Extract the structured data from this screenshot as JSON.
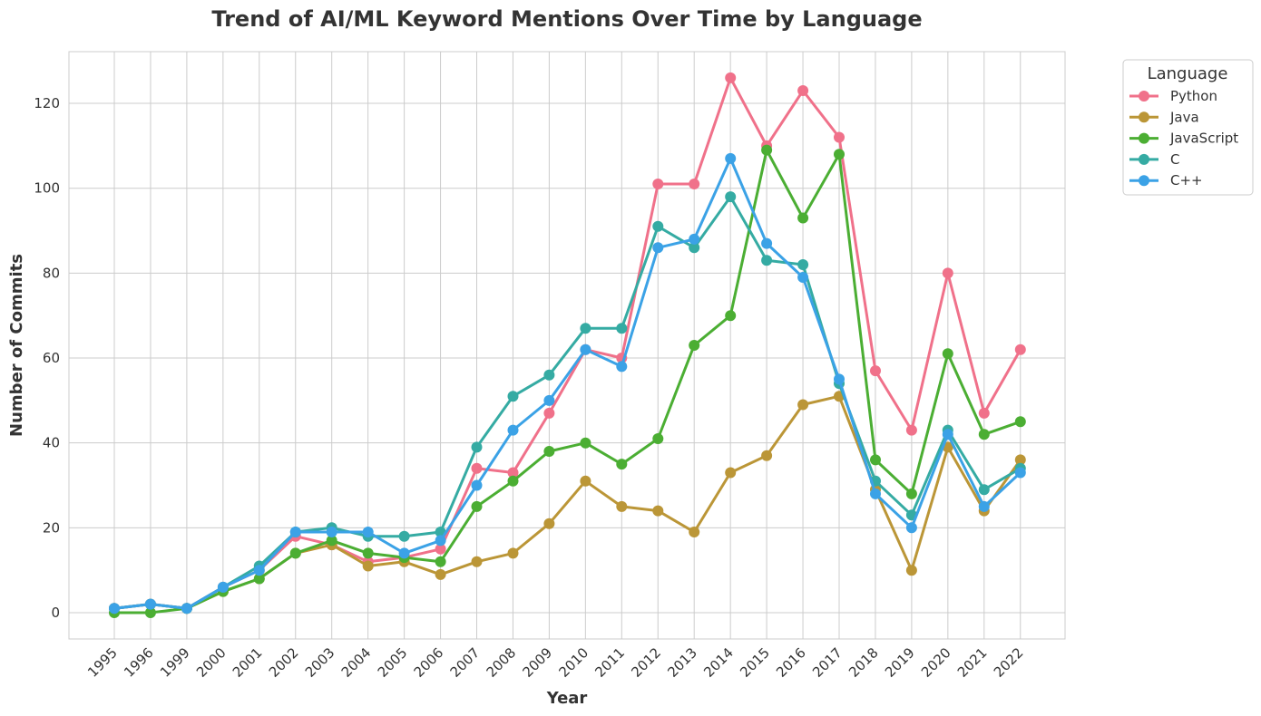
{
  "chart_data": {
    "type": "line",
    "title": "Trend of AI/ML Keyword Mentions Over Time by Language",
    "xlabel": "Year",
    "ylabel": "Number of Commits",
    "categories": [
      "1995",
      "1996",
      "1999",
      "2000",
      "2001",
      "2002",
      "2003",
      "2004",
      "2005",
      "2006",
      "2007",
      "2008",
      "2009",
      "2010",
      "2011",
      "2012",
      "2013",
      "2014",
      "2015",
      "2016",
      "2017",
      "2018",
      "2019",
      "2020",
      "2021",
      "2022"
    ],
    "ylim": [
      -6,
      132
    ],
    "yticks": [
      0,
      20,
      40,
      60,
      80,
      100,
      120
    ],
    "grid": true,
    "legend": {
      "title": "Language",
      "placement": "outside-top-right"
    },
    "series": [
      {
        "name": "Python",
        "color": "#f0718a",
        "values": [
          1,
          2,
          1,
          6,
          10,
          18,
          16,
          12,
          13,
          15,
          34,
          33,
          47,
          62,
          60,
          101,
          101,
          126,
          110,
          123,
          112,
          57,
          43,
          80,
          47,
          62
        ]
      },
      {
        "name": "Java",
        "color": "#bb9637",
        "values": [
          1,
          2,
          1,
          5,
          8,
          14,
          16,
          11,
          12,
          9,
          12,
          14,
          21,
          31,
          25,
          24,
          19,
          33,
          37,
          49,
          51,
          29,
          10,
          39,
          24,
          36
        ]
      },
      {
        "name": "JavaScript",
        "color": "#4bae33",
        "values": [
          0,
          0,
          1,
          5,
          8,
          14,
          17,
          14,
          13,
          12,
          25,
          31,
          38,
          40,
          35,
          41,
          63,
          70,
          109,
          93,
          108,
          36,
          28,
          61,
          42,
          45
        ]
      },
      {
        "name": "C",
        "color": "#35aba3",
        "values": [
          1,
          2,
          1,
          6,
          11,
          19,
          20,
          18,
          18,
          19,
          39,
          51,
          56,
          67,
          67,
          91,
          86,
          98,
          83,
          82,
          54,
          31,
          23,
          43,
          29,
          34
        ]
      },
      {
        "name": "C++",
        "color": "#3ba2e6",
        "values": [
          1,
          2,
          1,
          6,
          10,
          19,
          19,
          19,
          14,
          17,
          30,
          43,
          50,
          62,
          58,
          86,
          88,
          107,
          87,
          79,
          55,
          28,
          20,
          42,
          25,
          33
        ]
      }
    ]
  }
}
